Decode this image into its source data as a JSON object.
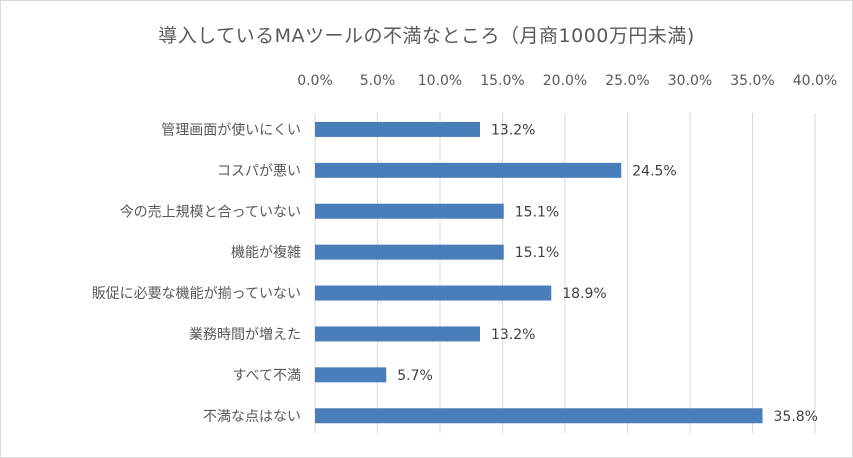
{
  "chart_data": {
    "type": "bar",
    "orientation": "horizontal",
    "title": "導入しているMAツールの不満なところ（月商1000万円未満)",
    "categories": [
      "管理画面が使いにくい",
      "コスパが悪い",
      "今の売上規模と合っていない",
      "機能が複雑",
      "販促に必要な機能が揃っていない",
      "業務時間が増えた",
      "すべて不満",
      "不満な点はない"
    ],
    "values": [
      13.2,
      24.5,
      15.1,
      15.1,
      18.9,
      13.2,
      5.7,
      35.8
    ],
    "value_labels": [
      "13.2%",
      "24.5%",
      "15.1%",
      "15.1%",
      "18.9%",
      "13.2%",
      "5.7%",
      "35.8%"
    ],
    "xlim": [
      0,
      40
    ],
    "x_ticks": [
      0,
      5,
      10,
      15,
      20,
      25,
      30,
      35,
      40
    ],
    "x_tick_labels": [
      "0.0%",
      "5.0%",
      "10.0%",
      "15.0%",
      "20.0%",
      "25.0%",
      "30.0%",
      "35.0%",
      "40.0%"
    ],
    "x_axis_position": "top",
    "grid": true,
    "legend": "none",
    "bar_color": "#4a7ebb",
    "grid_color": "#d9d9d9"
  }
}
